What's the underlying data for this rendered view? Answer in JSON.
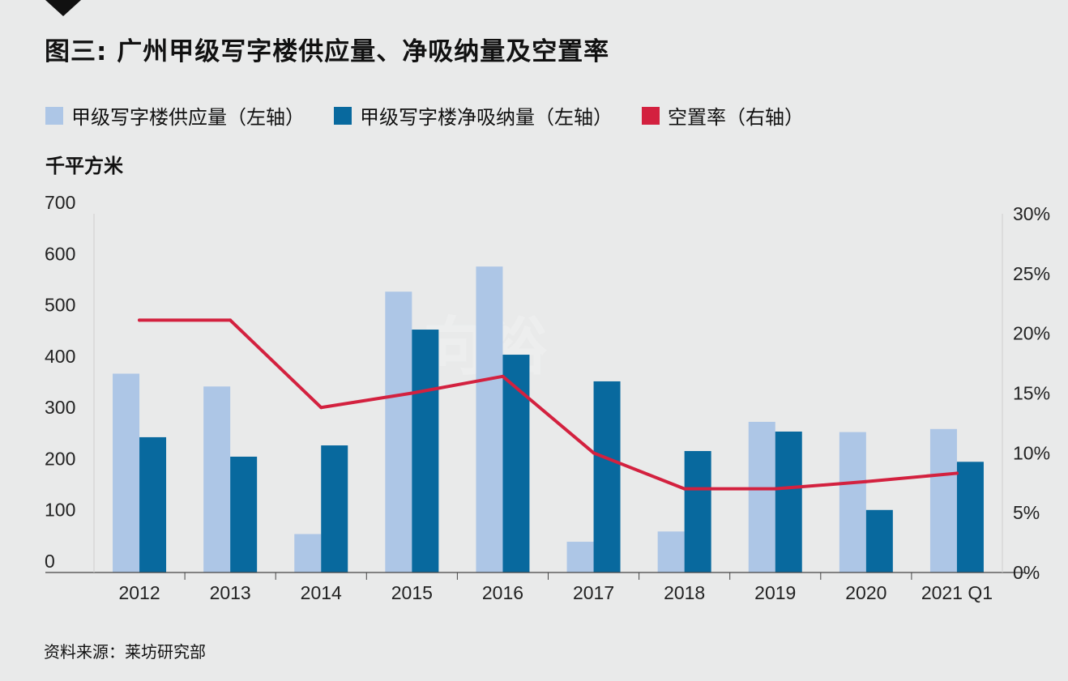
{
  "title": "图三: 广州甲级写字楼供应量、净吸纳量及空置率",
  "unit_label": "千平方米",
  "source": "资料来源：莱坊研究部",
  "watermark_text": "向裕",
  "colors": {
    "supply": "#adc6e6",
    "absorption": "#08699e",
    "vacancy": "#d3213f",
    "background": "#e9eaea"
  },
  "chart_data": {
    "type": "bar",
    "categories": [
      "2012",
      "2013",
      "2014",
      "2015",
      "2016",
      "2017",
      "2018",
      "2019",
      "2020",
      "2021 Q1"
    ],
    "series": [
      {
        "name": "甲级写字楼供应量（左轴）",
        "type": "bar",
        "axis": "left",
        "values": [
          388,
          363,
          75,
          548,
          597,
          60,
          80,
          294,
          274,
          280
        ]
      },
      {
        "name": "甲级写字楼净吸纳量（左轴）",
        "type": "bar",
        "axis": "left",
        "values": [
          264,
          226,
          248,
          474,
          425,
          373,
          237,
          275,
          122,
          216
        ]
      },
      {
        "name": "空置率（右轴）",
        "type": "line",
        "axis": "right",
        "values": [
          21.1,
          21.1,
          13.8,
          15.0,
          16.4,
          10.0,
          7.0,
          7.0,
          7.6,
          8.3
        ]
      }
    ],
    "ylim_left": [
      0,
      700
    ],
    "ylim_right": [
      0,
      30
    ],
    "yticks_left": [
      "0",
      "100",
      "200",
      "300",
      "400",
      "500",
      "600",
      "700"
    ],
    "yticks_right": [
      "0%",
      "5%",
      "10%",
      "15%",
      "20%",
      "25%",
      "30%"
    ],
    "grid": false,
    "legend_position": "top-left"
  }
}
